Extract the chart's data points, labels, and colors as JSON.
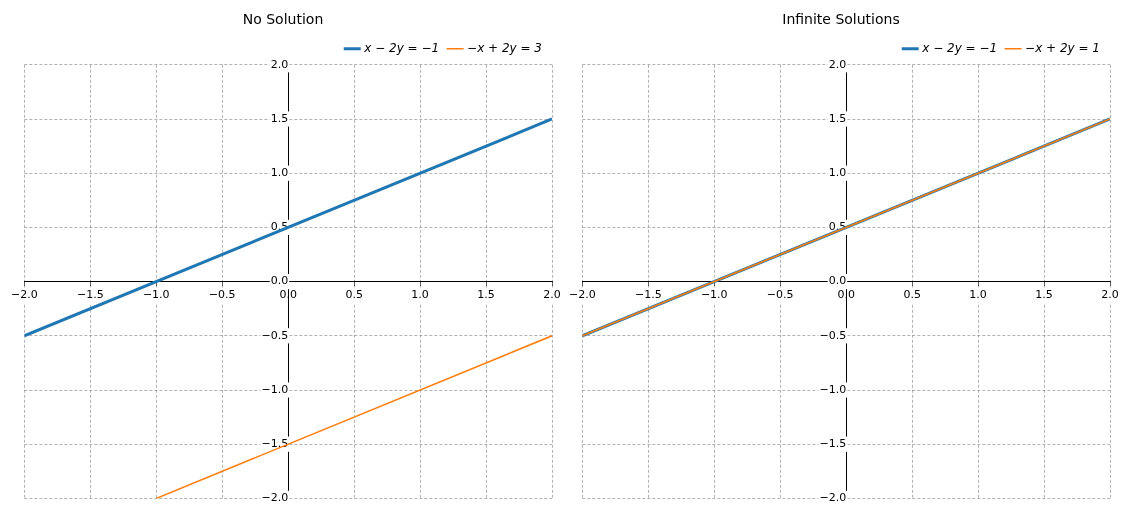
{
  "chart_data": [
    {
      "type": "line",
      "title": "No Solution",
      "xlim": [
        -2,
        2
      ],
      "ylim": [
        -2,
        2
      ],
      "xticks": [
        {
          "value": -2,
          "label": "−2.0"
        },
        {
          "value": -1.5,
          "label": "−1.5"
        },
        {
          "value": -1,
          "label": "−1.0"
        },
        {
          "value": -0.5,
          "label": "−0.5"
        },
        {
          "value": 0,
          "label": "0.0"
        },
        {
          "value": 0.5,
          "label": "0.5"
        },
        {
          "value": 1,
          "label": "1.0"
        },
        {
          "value": 1.5,
          "label": "1.5"
        },
        {
          "value": 2,
          "label": "2.0"
        }
      ],
      "yticks": [
        {
          "value": -2,
          "label": "−2.0"
        },
        {
          "value": -1.5,
          "label": "−1.5"
        },
        {
          "value": -1,
          "label": "−1.0"
        },
        {
          "value": -0.5,
          "label": "−0.5"
        },
        {
          "value": 0,
          "label": "0.0"
        },
        {
          "value": 0.5,
          "label": "0.5"
        },
        {
          "value": 1,
          "label": "1.0"
        },
        {
          "value": 1.5,
          "label": "1.5"
        },
        {
          "value": 2,
          "label": "2.0"
        }
      ],
      "grid": true,
      "legend": "top right",
      "series": [
        {
          "name": "x − 2y = −1",
          "color": "#1f77b4",
          "x": [
            -2,
            2
          ],
          "values": [
            -0.5,
            1.5
          ]
        },
        {
          "name": "−x + 2y = 3",
          "color": "#ff7f0e",
          "x": [
            -1,
            2
          ],
          "values": [
            -2,
            -0.5
          ]
        }
      ]
    },
    {
      "type": "line",
      "title": "Infinite Solutions",
      "xlim": [
        -2,
        2
      ],
      "ylim": [
        -2,
        2
      ],
      "xticks": [
        {
          "value": -2,
          "label": "−2.0"
        },
        {
          "value": -1.5,
          "label": "−1.5"
        },
        {
          "value": -1,
          "label": "−1.0"
        },
        {
          "value": -0.5,
          "label": "−0.5"
        },
        {
          "value": 0,
          "label": "0.0"
        },
        {
          "value": 0.5,
          "label": "0.5"
        },
        {
          "value": 1,
          "label": "1.0"
        },
        {
          "value": 1.5,
          "label": "1.5"
        },
        {
          "value": 2,
          "label": "2.0"
        }
      ],
      "yticks": [
        {
          "value": -2,
          "label": "−2.0"
        },
        {
          "value": -1.5,
          "label": "−1.5"
        },
        {
          "value": -1,
          "label": "−1.0"
        },
        {
          "value": -0.5,
          "label": "−0.5"
        },
        {
          "value": 0,
          "label": "0.0"
        },
        {
          "value": 0.5,
          "label": "0.5"
        },
        {
          "value": 1,
          "label": "1.0"
        },
        {
          "value": 1.5,
          "label": "1.5"
        },
        {
          "value": 2,
          "label": "2.0"
        }
      ],
      "grid": true,
      "legend": "top right",
      "series": [
        {
          "name": "x − 2y = −1",
          "color": "#1f77b4",
          "x": [
            -2,
            2
          ],
          "values": [
            -0.5,
            1.5
          ]
        },
        {
          "name": "−x + 2y = 1",
          "color": "#ff7f0e",
          "x": [
            -2,
            2
          ],
          "values": [
            -0.5,
            1.5
          ]
        }
      ]
    }
  ]
}
